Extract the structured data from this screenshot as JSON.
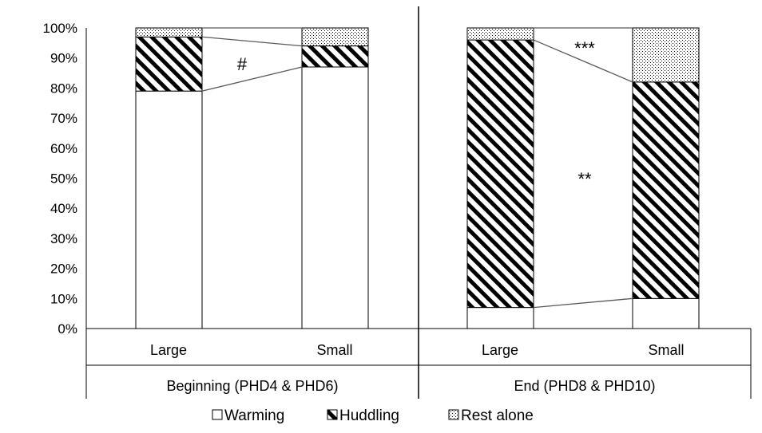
{
  "chart_data": {
    "type": "bar",
    "stacked": true,
    "normalized": true,
    "yticks": [
      "0%",
      "10%",
      "20%",
      "30%",
      "40%",
      "50%",
      "60%",
      "70%",
      "80%",
      "90%",
      "100%"
    ],
    "ylim": [
      0,
      100
    ],
    "groups": [
      {
        "label": "Beginning (PHD4 & PHD6)",
        "categories": [
          "Large",
          "Small"
        ],
        "significance": "#"
      },
      {
        "label": "End (PHD8 & PHD10)",
        "categories": [
          "Large",
          "Small"
        ],
        "significance_top": "***",
        "significance_middle": "**"
      }
    ],
    "series": [
      {
        "name": "Warming",
        "pattern": "solid-white",
        "values": [
          79,
          87,
          7,
          10
        ]
      },
      {
        "name": "Huddling",
        "pattern": "diagonal-hatch",
        "values": [
          18,
          7,
          89,
          72
        ]
      },
      {
        "name": "Rest alone",
        "pattern": "dotted",
        "values": [
          3,
          6,
          4,
          18
        ]
      }
    ],
    "colors": {
      "fill": "#ffffff",
      "stroke": "#000000",
      "axis": "#000000"
    },
    "legend_position": "bottom"
  }
}
